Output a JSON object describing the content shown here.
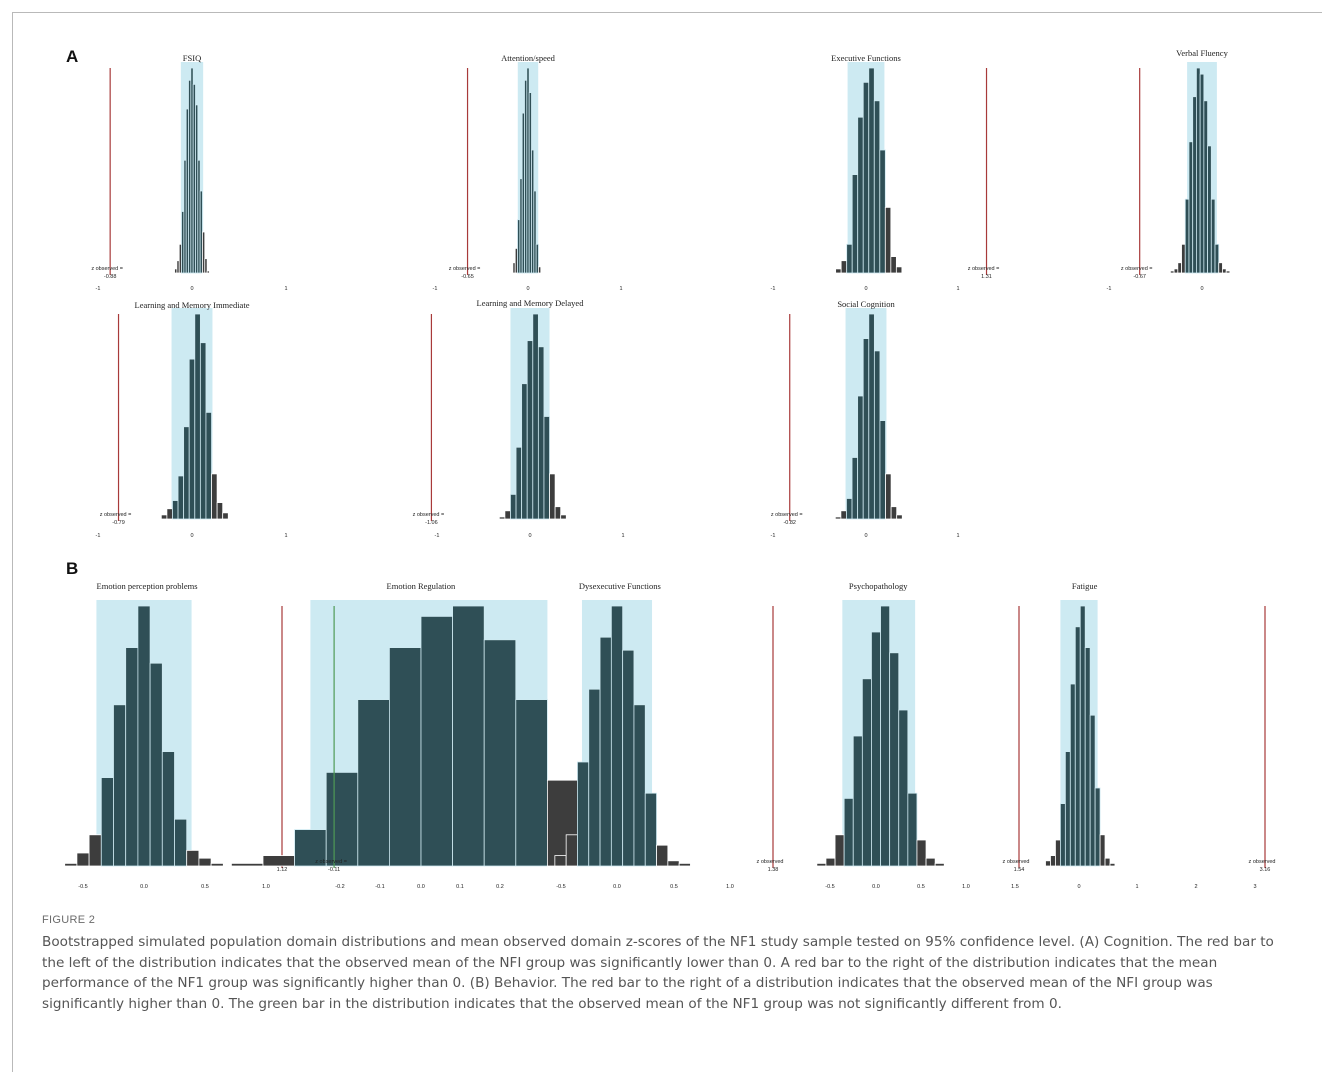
{
  "panel_labels": {
    "a": "A",
    "b": "B"
  },
  "figure_label": "FIGURE 2",
  "caption": "Bootstrapped simulated population domain distributions and mean observed domain z-scores of the NF1 study sample tested on 95% confidence level. (A) Cognition. The red bar to the left of the distribution indicates that the observed mean of the NFI group was significantly lower than 0. A red bar to the right of the distribution indicates that the mean performance of the NF1 group was significantly higher than 0. (B) Behavior. The red bar to the right of a distribution indicates that the observed mean of the NFI group was significantly higher than 0. The green bar in the distribution indicates that the observed mean of the NF1 group was not significantly different from 0.",
  "colors": {
    "bar": "#2f4f56",
    "tail_bar": "#3d3d3d",
    "ci_band": "#cdeaf2",
    "significant_line": "#a83a3a",
    "nonsignificant_line": "#4f9a55"
  },
  "chart_data": [
    {
      "type": "bar",
      "panel": "A",
      "title": "FSIQ",
      "xlim": [
        -1,
        1
      ],
      "ticks": [
        "-1",
        "0",
        "1"
      ],
      "ci": [
        -0.12,
        0.12
      ],
      "bin_centers": [
        -0.175,
        -0.15,
        -0.125,
        -0.1,
        -0.075,
        -0.05,
        -0.025,
        0.0,
        0.025,
        0.05,
        0.075,
        0.1,
        0.125,
        0.15,
        0.175
      ],
      "counts": [
        2,
        6,
        14,
        30,
        55,
        80,
        94,
        100,
        92,
        82,
        55,
        40,
        20,
        7,
        1
      ],
      "observed_value": -0.88,
      "observed_label": "z observed =",
      "observed_number": "-0.88",
      "significant": true
    },
    {
      "type": "bar",
      "panel": "A",
      "title": "Attention/speed",
      "xlim": [
        -1,
        1
      ],
      "ticks": [
        "-1",
        "0",
        "1"
      ],
      "ci": [
        -0.11,
        0.11
      ],
      "bin_centers": [
        -0.15,
        -0.125,
        -0.1,
        -0.075,
        -0.05,
        -0.025,
        0.0,
        0.025,
        0.05,
        0.075,
        0.1,
        0.125
      ],
      "counts": [
        5,
        12,
        26,
        46,
        78,
        94,
        100,
        88,
        60,
        40,
        14,
        3
      ],
      "observed_value": -0.65,
      "observed_label": "z observed =",
      "observed_number": "-0.65",
      "significant": true
    },
    {
      "type": "bar",
      "panel": "A",
      "title": "Executive Functions",
      "xlim": [
        -1,
        1
      ],
      "ticks": [
        "-1",
        "0",
        "1"
      ],
      "ci": [
        -0.2,
        0.2
      ],
      "bin_centers": [
        -0.3,
        -0.24,
        -0.18,
        -0.12,
        -0.06,
        0.0,
        0.06,
        0.12,
        0.18,
        0.24,
        0.3,
        0.36
      ],
      "counts": [
        2,
        6,
        14,
        48,
        76,
        93,
        100,
        84,
        60,
        32,
        8,
        3
      ],
      "observed_value": 1.31,
      "observed_label": "z observed =",
      "observed_number": "1.31",
      "significant": true
    },
    {
      "type": "bar",
      "panel": "A",
      "title": "Verbal Fluency",
      "xlim": [
        -1,
        1
      ],
      "ticks": [
        "-1",
        "0"
      ],
      "ci": [
        -0.16,
        0.16
      ],
      "bin_centers": [
        -0.32,
        -0.28,
        -0.24,
        -0.2,
        -0.16,
        -0.12,
        -0.08,
        -0.04,
        0.0,
        0.04,
        0.08,
        0.12,
        0.16,
        0.2,
        0.24,
        0.28
      ],
      "counts": [
        1,
        2,
        5,
        14,
        36,
        64,
        86,
        100,
        97,
        84,
        62,
        36,
        14,
        5,
        2,
        1
      ],
      "observed_value": -0.67,
      "observed_label": "z observed =",
      "observed_number": "-0.67",
      "significant": true
    },
    {
      "type": "bar",
      "panel": "A",
      "title": "Learning and Memory Immediate",
      "xlim": [
        -1,
        1
      ],
      "ticks": [
        "-1",
        "0",
        "1"
      ],
      "ci": [
        -0.22,
        0.22
      ],
      "bin_centers": [
        -0.3,
        -0.24,
        -0.18,
        -0.12,
        -0.06,
        0.0,
        0.06,
        0.12,
        0.18,
        0.24,
        0.3,
        0.36
      ],
      "counts": [
        2,
        5,
        9,
        21,
        45,
        78,
        100,
        86,
        52,
        22,
        8,
        3
      ],
      "observed_value": -0.79,
      "observed_label": "z observed =",
      "observed_number": "-0.79",
      "significant": true
    },
    {
      "type": "bar",
      "panel": "A",
      "title": "Learning and Memory Delayed",
      "xlim": [
        -1,
        1
      ],
      "ticks": [
        "-1",
        "0",
        "1"
      ],
      "ci": [
        -0.21,
        0.21
      ],
      "bin_centers": [
        -0.3,
        -0.24,
        -0.18,
        -0.12,
        -0.06,
        0.0,
        0.06,
        0.12,
        0.18,
        0.24,
        0.3,
        0.36
      ],
      "counts": [
        1,
        4,
        12,
        35,
        66,
        87,
        100,
        84,
        50,
        22,
        6,
        2
      ],
      "observed_value": -1.06,
      "observed_label": "z observed =",
      "observed_number": "-1.06",
      "significant": true
    },
    {
      "type": "bar",
      "panel": "A",
      "title": "Social Cognition",
      "xlim": [
        -1,
        1
      ],
      "ticks": [
        "-1",
        "0",
        "1"
      ],
      "ci": [
        -0.22,
        0.22
      ],
      "bin_centers": [
        -0.3,
        -0.24,
        -0.18,
        -0.12,
        -0.06,
        0.0,
        0.06,
        0.12,
        0.18,
        0.24,
        0.3,
        0.36
      ],
      "counts": [
        1,
        4,
        10,
        30,
        60,
        88,
        100,
        82,
        48,
        22,
        6,
        2
      ],
      "observed_value": -0.82,
      "observed_label": "z observed =",
      "observed_number": "-0.82",
      "significant": true
    },
    {
      "type": "bar",
      "panel": "B",
      "title": "Emotion perception problems",
      "xlim": [
        -0.55,
        1.03
      ],
      "ticks": [
        "-0.5",
        "0.0",
        "0.5",
        "1.0"
      ],
      "ci": [
        -0.39,
        0.39
      ],
      "bin_centers": [
        -0.6,
        -0.5,
        -0.4,
        -0.3,
        -0.2,
        -0.1,
        0.0,
        0.1,
        0.2,
        0.3,
        0.4,
        0.5,
        0.6
      ],
      "counts": [
        1,
        5,
        12,
        34,
        62,
        84,
        100,
        78,
        44,
        18,
        6,
        3,
        1
      ],
      "observed_value": 1.12,
      "observed_label": "z observed",
      "observed_number": "1.12",
      "significant": true
    },
    {
      "type": "bar",
      "panel": "B",
      "title": "Emotion Regulation",
      "xlim": [
        -0.25,
        0.25
      ],
      "ticks": [
        "-0.2",
        "-0.1",
        "0.0",
        "0.1",
        "0.2"
      ],
      "ci": [
        -0.14,
        0.16
      ],
      "bin_centers": [
        -0.22,
        -0.18,
        -0.14,
        -0.1,
        -0.06,
        -0.02,
        0.02,
        0.06,
        0.1,
        0.14,
        0.18,
        0.22,
        0.26
      ],
      "counts": [
        1,
        4,
        14,
        36,
        64,
        84,
        96,
        100,
        87,
        64,
        33,
        9,
        3
      ],
      "observed_value": -0.11,
      "observed_label": "z observed =",
      "observed_number": "-0.11",
      "significant": false
    },
    {
      "type": "bar",
      "panel": "B",
      "title": "Dysexecutive Functions",
      "xlim": [
        -0.5,
        1.0
      ],
      "ticks": [
        "-0.5",
        "0.0",
        "0.5",
        "1.0"
      ],
      "ci": [
        -0.31,
        0.31
      ],
      "bin_centers": [
        -0.5,
        -0.4,
        -0.3,
        -0.2,
        -0.1,
        0.0,
        0.1,
        0.2,
        0.3,
        0.4,
        0.5,
        0.6
      ],
      "counts": [
        4,
        12,
        40,
        68,
        88,
        100,
        83,
        62,
        28,
        8,
        2,
        1
      ],
      "observed_value": 1.38,
      "observed_label": "z observed",
      "observed_number": "1.38",
      "significant": true
    },
    {
      "type": "bar",
      "panel": "B",
      "title": "Psychopathology",
      "xlim": [
        -0.5,
        1.0
      ],
      "ticks": [
        "-0.5",
        "0.0",
        "0.5",
        "1.0"
      ],
      "ci": [
        -0.37,
        0.43
      ],
      "bin_centers": [
        -0.6,
        -0.5,
        -0.4,
        -0.3,
        -0.2,
        -0.1,
        0.0,
        0.1,
        0.2,
        0.3,
        0.4,
        0.5,
        0.6,
        0.7
      ],
      "counts": [
        1,
        3,
        12,
        26,
        50,
        72,
        90,
        100,
        82,
        60,
        28,
        10,
        3,
        1
      ],
      "observed_value": 1.54,
      "observed_label": "z observed",
      "observed_number": "1.54",
      "significant": true
    },
    {
      "type": "bar",
      "panel": "B",
      "title": "Fatigue",
      "xlim": [
        -0.5,
        3
      ],
      "ticks": [
        "1.5",
        "0",
        "1",
        "2",
        "3"
      ],
      "ci": [
        -0.3,
        0.3
      ],
      "bin_centers": [
        -0.5,
        -0.42,
        -0.34,
        -0.26,
        -0.18,
        -0.1,
        -0.02,
        0.06,
        0.14,
        0.22,
        0.3,
        0.38,
        0.46,
        0.54
      ],
      "counts": [
        2,
        4,
        10,
        24,
        44,
        70,
        92,
        100,
        84,
        58,
        30,
        12,
        3,
        1
      ],
      "observed_value": 3.16,
      "observed_label": "z observed",
      "observed_number": "3.16",
      "significant": true
    }
  ]
}
